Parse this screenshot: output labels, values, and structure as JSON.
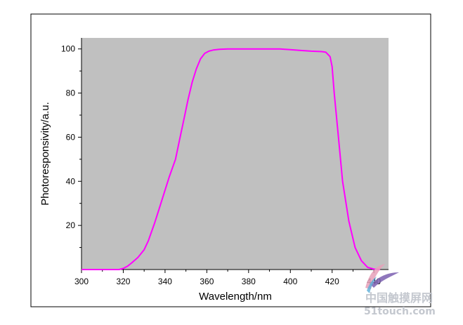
{
  "chart_data": {
    "type": "line",
    "xlabel": "Wavelength/nm",
    "ylabel": "Photoresponsivity/a.u.",
    "xlim": [
      300,
      447
    ],
    "ylim": [
      0,
      105
    ],
    "xticks": [
      300,
      320,
      340,
      360,
      380,
      400,
      420,
      440
    ],
    "yticks": [
      20,
      40,
      60,
      80,
      100
    ],
    "grid": false,
    "legend": "none",
    "plot_background": "#c0c0c0",
    "series": [
      {
        "color": "#ff00ff",
        "x": [
          300,
          318,
          320,
          322,
          324,
          327,
          330,
          332,
          335,
          338,
          340,
          342,
          345,
          347,
          349,
          351,
          353,
          355,
          357,
          359,
          361,
          363,
          366,
          370,
          380,
          390,
          395,
          400,
          405,
          410,
          415,
          417,
          419,
          420,
          421,
          423,
          425,
          428,
          431,
          434,
          437,
          440,
          443
        ],
        "y": [
          0,
          0,
          0.5,
          1.5,
          3,
          5.5,
          9,
          13,
          21,
          30,
          36,
          42,
          50,
          59,
          68,
          77,
          85,
          91,
          95.5,
          98,
          99,
          99.5,
          99.8,
          100,
          100,
          100,
          100,
          99.7,
          99.3,
          99,
          98.8,
          98.5,
          96.5,
          92,
          80,
          60,
          40,
          22,
          10,
          4,
          1,
          0.2,
          0
        ]
      }
    ]
  },
  "watermark": {
    "line1": "中国触摸屏网",
    "line2": "51touch.com"
  }
}
